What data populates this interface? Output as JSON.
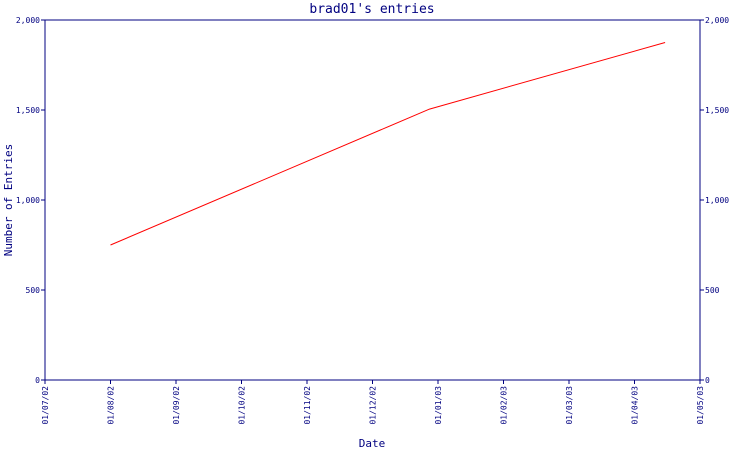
{
  "chart_data": {
    "type": "line",
    "title": "brad01's entries",
    "xlabel": "Date",
    "ylabel": "Number of Entries",
    "x_ticks": [
      "01/07/02",
      "01/08/02",
      "01/09/02",
      "01/10/02",
      "01/11/02",
      "01/12/02",
      "01/01/03",
      "01/02/03",
      "01/03/03",
      "01/04/03",
      "01/05/03"
    ],
    "y_ticks": [
      0,
      500,
      1000,
      1500,
      2000
    ],
    "y_tick_labels": [
      "0",
      "500",
      "1,000",
      "1,500",
      "2,000"
    ],
    "ylim": [
      0,
      2000
    ],
    "grid": false,
    "legend": "none",
    "series": [
      {
        "color": "#ff0000",
        "points": [
          {
            "x": "2002-08-01",
            "y": 750
          },
          {
            "x": "2002-12-28",
            "y": 1505
          },
          {
            "x": "2003-04-15",
            "y": 1875
          }
        ]
      }
    ]
  },
  "colors": {
    "axis": "#000080",
    "line": "#ff0000",
    "background": "#ffffff"
  }
}
